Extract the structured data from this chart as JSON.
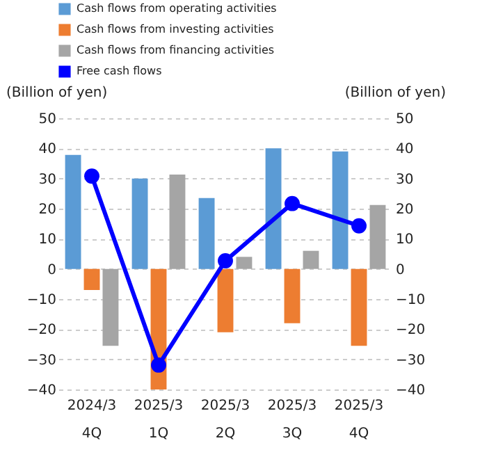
{
  "chart_data": {
    "type": "bar",
    "categories": [
      "2024/3\n4Q",
      "2025/3\n1Q",
      "2025/3\n2Q",
      "2025/3\n3Q",
      "2025/3\n4Q"
    ],
    "ylabel": "(Billion of yen)",
    "y2label": "(Billion of yen)",
    "series": [
      {
        "name": "Cash flows from operating activities",
        "color": "#5b9bd5",
        "values": [
          37.8,
          30,
          23.5,
          40,
          39
        ]
      },
      {
        "name": "Cash flows from investing activities",
        "color": "#ed7d31",
        "values": [
          -7,
          -40,
          -21,
          -18,
          -25.5
        ]
      },
      {
        "name": "Cash flows from financing activities",
        "color": "#a5a5a5",
        "values": [
          -25.5,
          31.3,
          4,
          6,
          21.2
        ]
      },
      {
        "name": "Free cash flows",
        "type": "line",
        "axis": "y2",
        "color": "#0000ff",
        "marker": "circle",
        "values": [
          30.8,
          -31.9,
          2.7,
          21.7,
          14.3
        ]
      }
    ],
    "ylim": [
      -40,
      50
    ],
    "yticks": [
      -40,
      -30,
      -20,
      -10,
      0,
      10,
      20,
      30,
      40,
      50
    ],
    "y2lim": [
      -40,
      50
    ],
    "y2ticks": [
      -40,
      -30,
      -20,
      -10,
      0,
      10,
      20,
      30,
      40,
      50
    ],
    "grid": "y",
    "legend": "top"
  }
}
